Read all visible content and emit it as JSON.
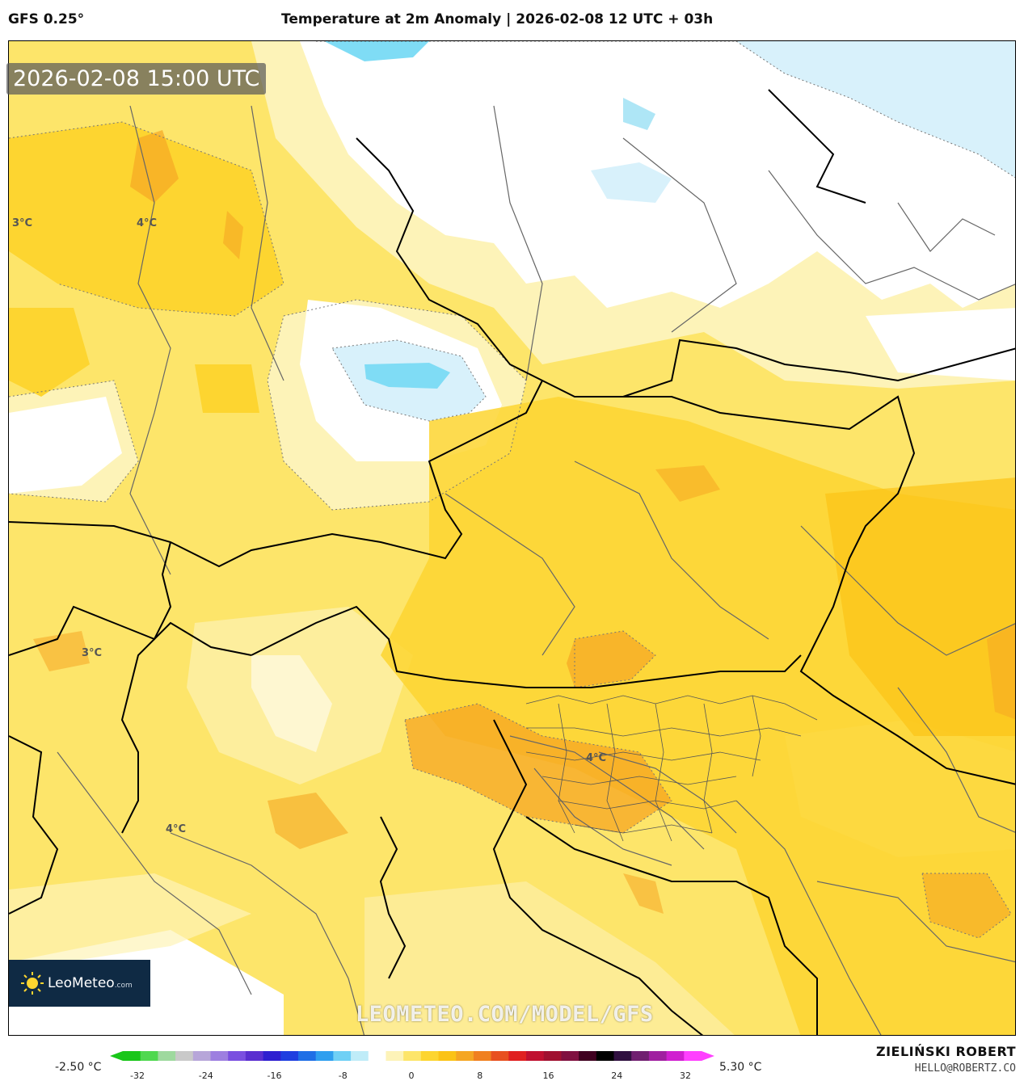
{
  "header": {
    "model": "GFS 0.25°",
    "title": "Temperature at 2m Anomaly | 2026-02-08 12 UTC + 03h"
  },
  "map": {
    "valid_time": "2026-02-08 15:00 UTC",
    "contour_labels": [
      "3°C",
      "4°C",
      "3°C",
      "4°C",
      "4°C"
    ],
    "watermark": "LEOMETEO.COM/MODEL/GFS",
    "logo": {
      "name": "LeoMeteo",
      "domain": ".com"
    },
    "colors": {
      "anomaly_pale": "#fdf3b8",
      "anomaly_light": "#fde56a",
      "anomaly_mid": "#fdd530",
      "anomaly_strong": "#fbc316",
      "anomaly_orange": "#f5a623",
      "cold_white": "#ffffff",
      "cold_pale_blue": "#d8f1fb",
      "cold_blue": "#7fdcf5",
      "border_country": "#000000",
      "border_region": "#666666"
    }
  },
  "legend": {
    "min_label": "-2.50 °C",
    "max_label": "5.30 °C",
    "ticks": [
      "-32",
      "-24",
      "-16",
      "-8",
      "0",
      "8",
      "16",
      "24",
      "32"
    ],
    "scale_colors": [
      "#19c619",
      "#4fd84f",
      "#9ed99e",
      "#c9c9c9",
      "#b7a6d9",
      "#9d7fe0",
      "#7a4fe0",
      "#5a2fd0",
      "#2f1fd0",
      "#1f3fe0",
      "#1f6fe6",
      "#2f9fef",
      "#6fd0f5",
      "#bfecf8",
      "#ffffff",
      "#fdf3b8",
      "#fde56a",
      "#fdd530",
      "#fbc316",
      "#f5a623",
      "#f08020",
      "#e85020",
      "#e02020",
      "#c01030",
      "#a01030",
      "#801040",
      "#400020",
      "#000000",
      "#301040",
      "#702070",
      "#a020a0",
      "#d020d0",
      "#ff40ff"
    ]
  },
  "credits": {
    "author": "ZIELIŃSKI ROBERT",
    "email": "HELLO@ROBERTZ.CO"
  }
}
